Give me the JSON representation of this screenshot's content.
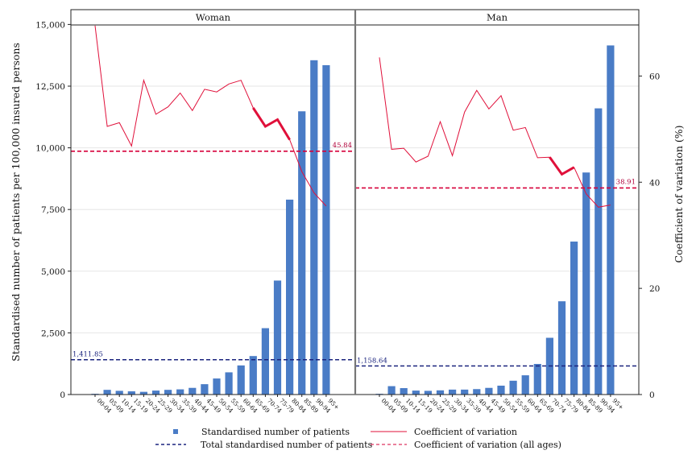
{
  "chart_data": {
    "type": "bar",
    "ylabel_left": "Standardised number of patients per 100,000 insured persons",
    "ylabel_right": "Coefficient of variation (%)",
    "ylim_left": [
      0,
      15600
    ],
    "ylim_right": [
      0,
      72.5
    ],
    "yticks_left": [
      0,
      2500,
      5000,
      7500,
      10000,
      12500,
      15000
    ],
    "yticks_left_labels": [
      "0",
      "2,500",
      "5,000",
      "7,500",
      "10,000",
      "12,500",
      "15,000"
    ],
    "yticks_right": [
      0,
      20,
      40,
      60
    ],
    "yticks_right_labels": [
      "0",
      "20",
      "40",
      "60"
    ],
    "grid": true,
    "categories": [
      "00-04",
      "05-09",
      "10-14",
      "15-19",
      "20-24",
      "25-29",
      "30-34",
      "35-39",
      "40-44",
      "45-49",
      "50-54",
      "55-59",
      "60-64",
      "65-69",
      "70-74",
      "75-79",
      "80-84",
      "85-89",
      "90-94",
      "95+"
    ],
    "colors": {
      "bars": "#4a7cc6",
      "cv": "#e0103a",
      "total": "#1a237e",
      "cv_all": "#d6003a"
    },
    "panels": [
      {
        "title": "Woman",
        "bars": [
          30,
          190,
          150,
          130,
          110,
          160,
          190,
          210,
          270,
          420,
          650,
          900,
          1180,
          1560,
          2690,
          4620,
          7900,
          11480,
          13550,
          13350
        ],
        "cv": [
          69.5,
          50.5,
          51.2,
          46.8,
          59.2,
          52.8,
          54.2,
          56.8,
          53.5,
          57.5,
          57.0,
          58.5,
          59.2,
          54.0,
          50.5,
          51.8,
          48.0,
          42.0,
          38.0,
          35.5
        ],
        "cv_highlight": [
          13,
          14,
          15,
          16
        ],
        "total": 1411.85,
        "total_label": "1,411.85",
        "cv_all": 45.84,
        "cv_all_label": "45.84"
      },
      {
        "title": "Man",
        "bars": [
          30,
          340,
          260,
          160,
          150,
          170,
          200,
          200,
          220,
          270,
          360,
          560,
          780,
          1240,
          2300,
          3780,
          6200,
          9000,
          11600,
          14150
        ],
        "cv": [
          63.5,
          46.2,
          46.4,
          43.8,
          44.9,
          51.4,
          45.0,
          53.2,
          57.3,
          53.8,
          56.3,
          49.8,
          50.3,
          44.6,
          44.7,
          41.5,
          42.8,
          37.8,
          35.3,
          35.7
        ],
        "cv_highlight": [
          14,
          15,
          16
        ],
        "total": 1158.64,
        "total_label": "1,158.64",
        "cv_all": 38.91,
        "cv_all_label": "38.91"
      }
    ],
    "legend": [
      {
        "key": "bars",
        "label": "Standardised number of patients"
      },
      {
        "key": "cv",
        "label": "Coefficient of variation"
      },
      {
        "key": "total",
        "label": "Total standardised number of patients"
      },
      {
        "key": "cv_all",
        "label": "Coefficient of variation (all ages)"
      }
    ]
  }
}
